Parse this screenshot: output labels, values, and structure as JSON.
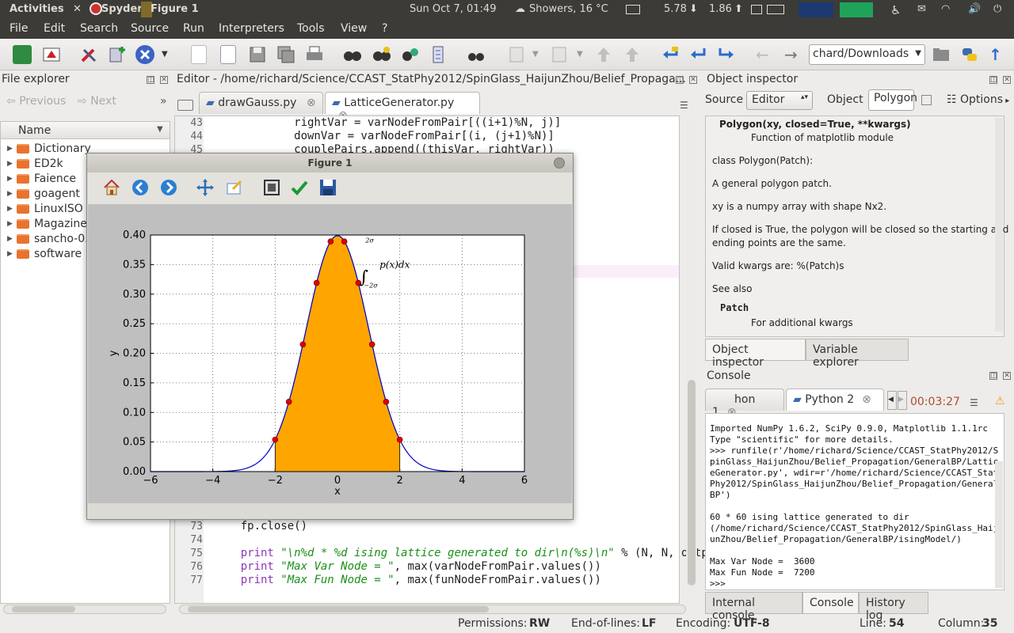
{
  "topbar": {
    "activities": "Activities",
    "app": "Spyder",
    "window": "Figure 1",
    "clock": "Sun Oct  7, 01:49",
    "weather": "Showers, 16 °C",
    "down_rate": "5.78",
    "up_rate": "1.86"
  },
  "menu": [
    "File",
    "Edit",
    "Search",
    "Source",
    "Run",
    "Interpreters",
    "Tools",
    "View",
    "?"
  ],
  "toolbar": {
    "path": "chard/Downloads",
    "icons": [
      "maximize-pane-icon",
      "report-icon",
      "preferences-icon",
      "add-path-icon",
      "kill-icon",
      "dropdown-icon",
      "new-file-icon",
      "open-file-icon",
      "save-icon",
      "save-all-icon",
      "print-icon",
      "run-icon",
      "debug-icon",
      "run-selection-icon",
      "run-config-icon",
      "profiler-icon",
      "comment-icon",
      "indent-icon",
      "previous-edit-icon",
      "next-edit-icon",
      "back-icon",
      "forward-icon",
      "folder-icon",
      "python-icon",
      "up-icon"
    ]
  },
  "file_explorer": {
    "title": "File explorer",
    "previous": "Previous",
    "next": "Next",
    "column": "Name",
    "items": [
      "Dictionary",
      "ED2k",
      "Faience",
      "goagent",
      "LinuxISO",
      "Magazine",
      "sancho-0.",
      "software"
    ]
  },
  "editor": {
    "title": "Editor - /home/richard/Science/CCAST_StatPhy2012/SpinGlass_HaijunZhou/Belief_Propaga...",
    "tabs": [
      "drawGauss.py",
      "LatticeGenerator.py"
    ],
    "lines_top": [
      {
        "n": "43",
        "code": "            rightVar = varNodeFromPair[((i+1)%N, j)]"
      },
      {
        "n": "44",
        "code": "            downVar = varNodeFromPair[(i, (j+1)%N)]"
      },
      {
        "n": "45",
        "code": "            couplePairs.append((thisVar, rightVar))"
      }
    ],
    "lines_bottom": [
      {
        "n": "73",
        "code": "    fp.close()"
      },
      {
        "n": "74",
        "code": ""
      },
      {
        "n": "75",
        "kw": "print",
        "str": " \"\\n%d * %d ising lattice generated to dir\\n(%s)\\n\"",
        "rest": " % (N, N, outpu"
      },
      {
        "n": "76",
        "kw": "print",
        "str": " \"Max Var Node = \"",
        "rest": ", max(varNodeFromPair.values())"
      },
      {
        "n": "77",
        "kw": "print",
        "str": " \"Max Fun Node = \"",
        "rest": ", max(funNodeFromPair.values())"
      }
    ]
  },
  "figure": {
    "title": "Figure 1",
    "tools": [
      "home-icon",
      "back-arrow-icon",
      "forward-arrow-icon",
      "pan-icon",
      "zoom-icon",
      "subplots-icon",
      "edit-curves-icon",
      "save-figure-icon"
    ]
  },
  "chart_data": {
    "type": "area",
    "title": "",
    "xlabel": "x",
    "ylabel": "y",
    "xlim": [
      -6,
      6
    ],
    "ylim": [
      0,
      0.4
    ],
    "xticks": [
      "−6",
      "−4",
      "−2",
      "0",
      "2",
      "4",
      "6"
    ],
    "yticks": [
      "0.00",
      "0.05",
      "0.10",
      "0.15",
      "0.20",
      "0.25",
      "0.30",
      "0.35",
      "0.40"
    ],
    "grid": true,
    "curve": "standard normal pdf",
    "fill_range": [
      -2,
      2
    ],
    "fill_color": "#ffa500",
    "line_color": "#0000cc",
    "point_color": "#e00000",
    "annotation": "∫ p(x)dx",
    "annotation_upper": "2σ",
    "annotation_lower": "−2σ",
    "points": [
      {
        "x": -2.0,
        "y": 0.054
      },
      {
        "x": -1.56,
        "y": 0.118
      },
      {
        "x": -1.11,
        "y": 0.215
      },
      {
        "x": -0.67,
        "y": 0.319
      },
      {
        "x": -0.22,
        "y": 0.389
      },
      {
        "x": 0.22,
        "y": 0.389
      },
      {
        "x": 0.67,
        "y": 0.319
      },
      {
        "x": 1.11,
        "y": 0.215
      },
      {
        "x": 1.56,
        "y": 0.118
      },
      {
        "x": 2.0,
        "y": 0.054
      }
    ]
  },
  "object_inspector": {
    "title": "Object inspector",
    "source_label": "Source",
    "source_value": "Editor",
    "object_label": "Object",
    "object_value": "Polygon",
    "options": "Options",
    "signature": "Polygon(xy, closed=True, **kwargs)",
    "sig_sub": "Function of matplotlib module",
    "doc": [
      "class Polygon(Patch):",
      "A general polygon patch.",
      "xy is a numpy array with shape Nx2.",
      "If closed is True, the polygon will be closed so the starting and",
      "ending points are the same.",
      "Valid kwargs are: %(Patch)s",
      "See also"
    ],
    "see_also_name": "Patch",
    "see_also_desc": "For additional kwargs",
    "tabs": [
      "Object inspector",
      "Variable explorer"
    ]
  },
  "console": {
    "title": "Console",
    "tabs": [
      "hon 1",
      "Python 2"
    ],
    "timer": "00:03:27",
    "lines": [
      "Imported NumPy 1.6.2, SciPy 0.9.0, Matplotlib 1.1.1rc",
      "Type \"scientific\" for more details.",
      ">>> runfile(r'/home/richard/Science/CCAST_StatPhy2012/S",
      "pinGlass_HaijunZhou/Belief_Propagation/GeneralBP/Lattic",
      "eGenerator.py', wdir=r'/home/richard/Science/CCAST_Stat",
      "Phy2012/SpinGlass_HaijunZhou/Belief_Propagation/General",
      "BP')",
      "",
      "60 * 60 ising lattice generated to dir",
      "(/home/richard/Science/CCAST_StatPhy2012/SpinGlass_Haij",
      "unZhou/Belief_Propagation/GeneralBP/isingModel/)",
      "",
      "Max Var Node =  3600",
      "Max Fun Node =  7200",
      ">>>"
    ],
    "bottom_tabs": [
      "Internal console",
      "Console",
      "History log"
    ]
  },
  "status": {
    "permissions_label": "Permissions:",
    "permissions": "RW",
    "eol_label": "End-of-lines:",
    "eol": "LF",
    "encoding_label": "Encoding:",
    "encoding": "UTF-8",
    "line_label": "Line:",
    "line": "54",
    "col_label": "Column:",
    "col": "35"
  }
}
